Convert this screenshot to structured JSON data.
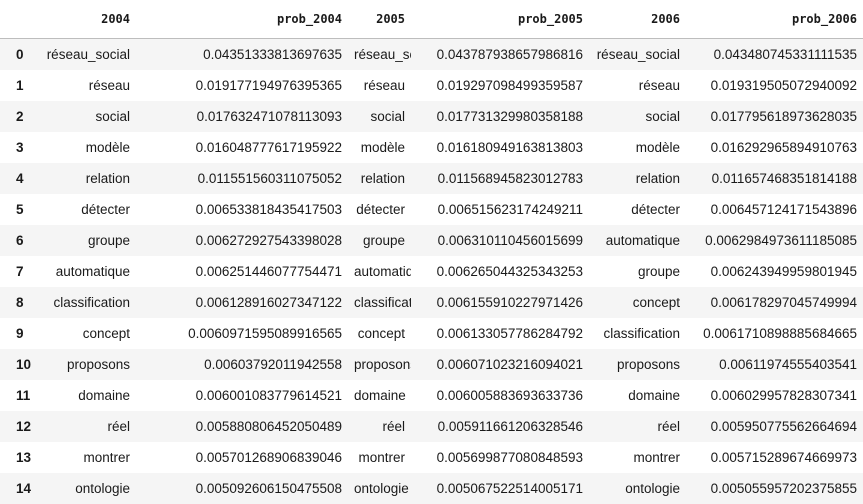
{
  "table": {
    "columns": [
      "",
      "2004",
      "prob_2004",
      "2005",
      "prob_2005",
      "2006",
      "prob_2006"
    ],
    "rows": [
      [
        "0",
        "réseau_social",
        "0.04351333813697635",
        "réseau_social",
        "0.043787938657986816",
        "réseau_social",
        "0.043480745331111535"
      ],
      [
        "1",
        "réseau",
        "0.019177194976395365",
        "réseau",
        "0.019297098499359587",
        "réseau",
        "0.019319505072940092"
      ],
      [
        "2",
        "social",
        "0.017632471078113093",
        "social",
        "0.017731329980358188",
        "social",
        "0.017795618973628035"
      ],
      [
        "3",
        "modèle",
        "0.016048777617195922",
        "modèle",
        "0.016180949163813803",
        "modèle",
        "0.016292965894910763"
      ],
      [
        "4",
        "relation",
        "0.011551560311075052",
        "relation",
        "0.011568945823012783",
        "relation",
        "0.011657468351814188"
      ],
      [
        "5",
        "détecter",
        "0.006533818435417503",
        "détecter",
        "0.006515623174249211",
        "détecter",
        "0.006457124171543896"
      ],
      [
        "6",
        "groupe",
        "0.006272927543398028",
        "groupe",
        "0.006310110456015699",
        "automatique",
        "0.006298497361118508 5"
      ],
      [
        "7",
        "automatique",
        "0.006251446077754471",
        "automatique",
        "0.006265044325343253",
        "groupe",
        "0.006243949959801945"
      ],
      [
        "8",
        "classification",
        "0.006128916027347122",
        "classification",
        "0.006155910227971426",
        "concept",
        "0.006178297045749994"
      ],
      [
        "9",
        "concept",
        "0.006097159508991656 5",
        "concept",
        "0.006133057786284792",
        "classification",
        "0.006171089888568466 5"
      ],
      [
        "10",
        "proposons",
        "0.006037920119425580",
        "proposons",
        "0.006071023216094021",
        "proposons",
        "0.006119745554035410"
      ],
      [
        "11",
        "domaine",
        "0.006001083779614521",
        "domaine",
        "0.006005883693633736",
        "domaine",
        "0.006029957828307341"
      ],
      [
        "12",
        "réel",
        "0.005880806452050489",
        "réel",
        "0.005911661206328546",
        "réel",
        "0.005950775562664694"
      ],
      [
        "13",
        "montrer",
        "0.005701268906839046",
        "montrer",
        "0.005699877080848593 06",
        "montrer",
        "0.005715289674669973"
      ],
      [
        "14",
        "ontologie",
        "0.005092606150475508",
        "ontologie",
        "0.005067522514005171",
        "ontologie",
        "0.005055957202375855"
      ]
    ]
  }
}
